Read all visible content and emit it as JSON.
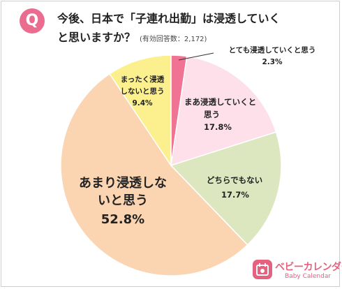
{
  "header": {
    "badge": "Q",
    "title_line1": "今後、日本で「子連れ出勤」は浸透していく",
    "title_line2": "と思いますか？",
    "subtitle": "(有効回答数：2,172)"
  },
  "chart_data": {
    "type": "pie",
    "title": "今後、日本で「子連れ出勤」は浸透していくと思いますか？",
    "subtitle": "(有効回答数：2,172)",
    "start": "12 o'clock",
    "direction": "clockwise",
    "slices": [
      {
        "label": "とても浸透していくと思う",
        "value": 2.3,
        "display": "2.3%",
        "color": "#f07394"
      },
      {
        "label": "まあ浸透していくと思う",
        "value": 17.8,
        "display": "17.8%",
        "color": "#fde0ea"
      },
      {
        "label": "どちらでもない",
        "value": 17.7,
        "display": "17.7%",
        "color": "#dce7c0"
      },
      {
        "label": "あまり浸透しないと思う",
        "value": 52.8,
        "display": "52.8%",
        "color": "#fbd4b1"
      },
      {
        "label": "まったく浸透しないと思う",
        "value": 9.4,
        "display": "9.4%",
        "color": "#fbf08d"
      }
    ]
  },
  "brand": {
    "name": "ベビーカレンダー",
    "sub": "Baby Calendar"
  }
}
